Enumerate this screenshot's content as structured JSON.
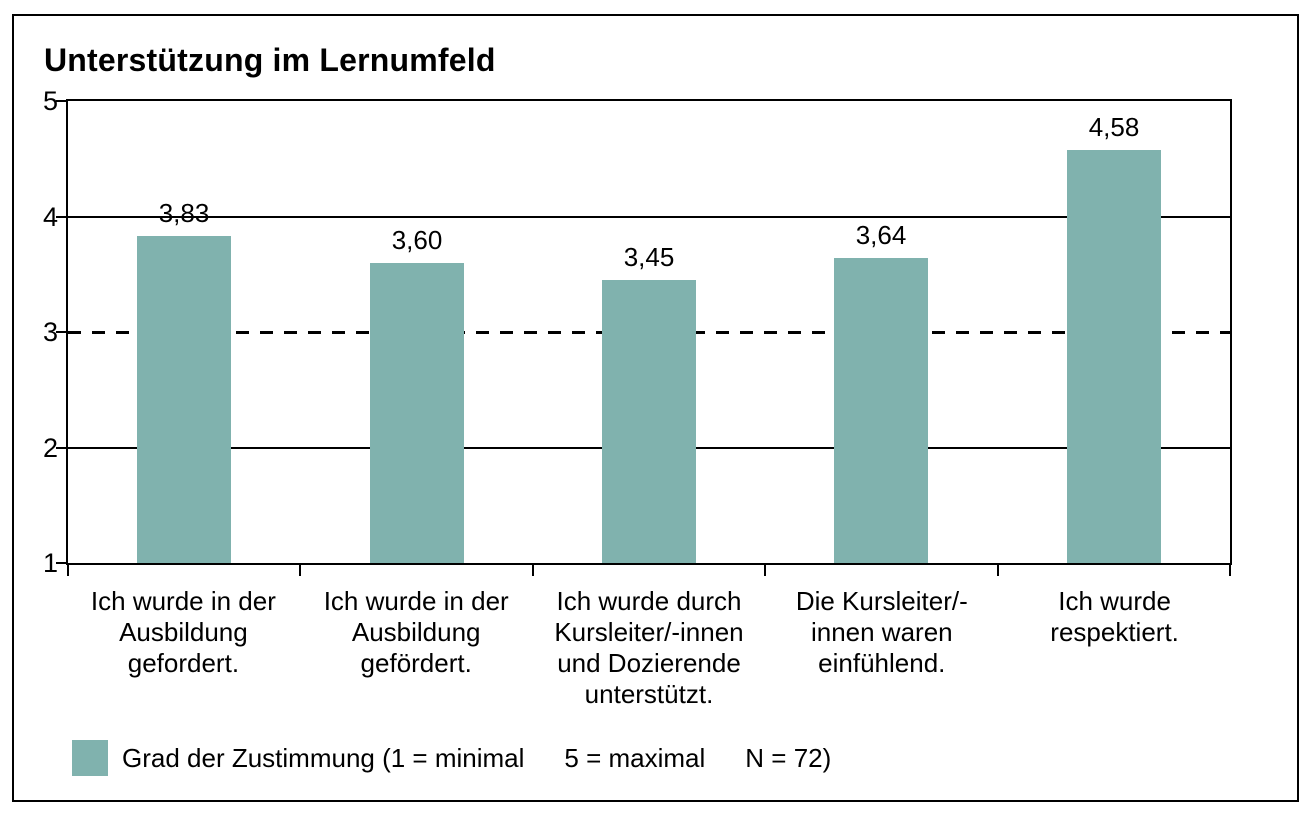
{
  "title": "Unterstützung im Lernumfeld",
  "colors": {
    "bar": "#80B2AE",
    "axis": "#000000",
    "background": "#FFFFFF",
    "text": "#000000"
  },
  "chart_data": {
    "type": "bar",
    "title": "Unterstützung im Lernumfeld",
    "categories": [
      "Ich wurde in der Ausbildung gefordert.",
      "Ich wurde in der Ausbildung gefördert.",
      "Ich wurde durch Kursleiter/-innen und Dozierende unterstützt.",
      "Die Kursleiter/-innen waren einfühlend.",
      "Ich wurde respektiert."
    ],
    "values": [
      3.83,
      3.6,
      3.45,
      3.64,
      4.58
    ],
    "value_labels": [
      "3,83",
      "3,60",
      "3,45",
      "3,64",
      "4,58"
    ],
    "xlabel": "",
    "ylabel": "",
    "ylim": [
      1,
      5
    ],
    "yticks": [
      5,
      4,
      3,
      2,
      1
    ],
    "ytick_labels": [
      "5",
      "4",
      "3",
      "2",
      "1"
    ],
    "grid": {
      "solid_lines_at": [
        4,
        2
      ],
      "dashed_line_at": 3
    },
    "legend_position": "bottom-left"
  },
  "legend": {
    "parts": [
      "Grad der Zustimmung (1 = minimal",
      "5 = maximal",
      "N = 72)"
    ]
  }
}
